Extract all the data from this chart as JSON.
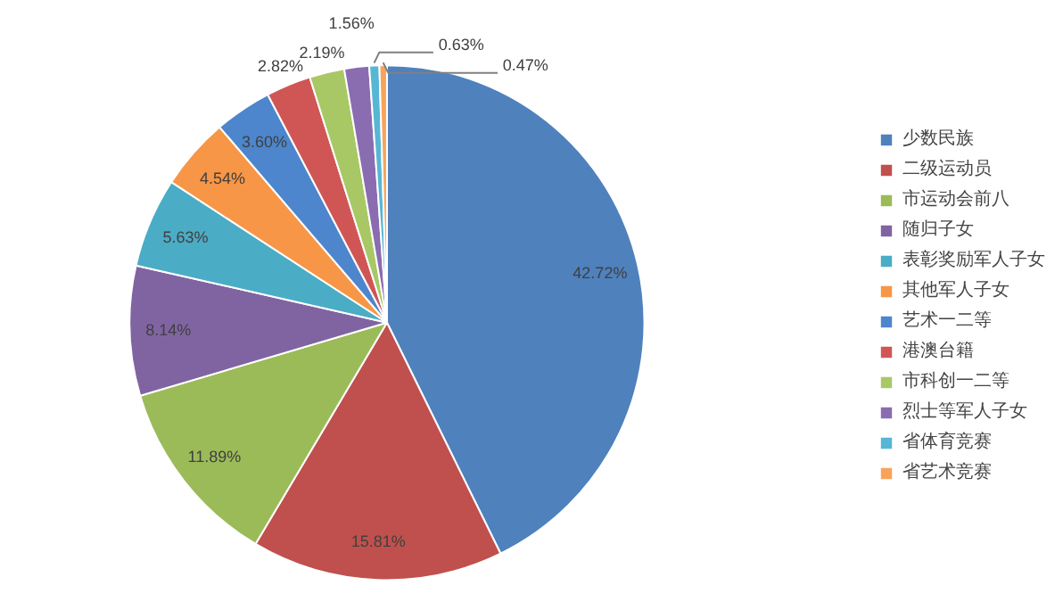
{
  "chart_data": {
    "type": "pie",
    "categories": [
      "少数民族",
      "二级运动员",
      "市运动会前八",
      "随归子女",
      "表彰奖励军人子女",
      "其他军人子女",
      "艺术一二等",
      "港澳台籍",
      "市科创一二等",
      "烈士等军人子女",
      "省体育竞赛",
      "省艺术竞赛"
    ],
    "values": [
      42.72,
      15.81,
      11.89,
      8.14,
      5.63,
      4.54,
      3.6,
      2.82,
      2.19,
      1.56,
      0.63,
      0.47
    ],
    "colors": [
      "#4f81bd",
      "#c0504d",
      "#9bbb59",
      "#8064a2",
      "#4bacc6",
      "#f79646",
      "#4d86cc",
      "#d05656",
      "#a8c865",
      "#8a6cb0",
      "#57b6d4",
      "#f8a35a"
    ],
    "value_labels": [
      "42.72%",
      "15.81%",
      "11.89%",
      "8.14%",
      "5.63%",
      "4.54%",
      "3.60%",
      "2.82%",
      "2.19%",
      "1.56%",
      "0.63%",
      "0.47%"
    ],
    "legend": "right"
  }
}
